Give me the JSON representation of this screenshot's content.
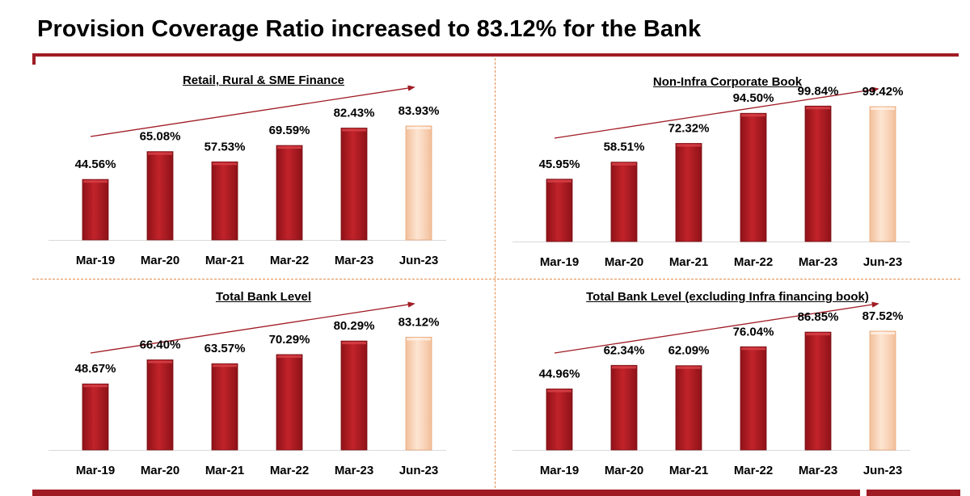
{
  "title": "Provision Coverage Ratio increased to 83.12% for the Bank",
  "colors": {
    "brand": "#a01c24",
    "bar": "#b31b22",
    "bar_highlight": "#f9d3b5",
    "divider": "#e38a4a"
  },
  "chart_data": [
    {
      "type": "bar",
      "title": "Retail, Rural & SME Finance",
      "categories": [
        "Mar-19",
        "Mar-20",
        "Mar-21",
        "Mar-22",
        "Mar-23",
        "Jun-23"
      ],
      "values": [
        44.56,
        65.08,
        57.53,
        69.59,
        82.43,
        83.93
      ],
      "value_labels": [
        "44.56%",
        "65.08%",
        "57.53%",
        "69.59%",
        "82.43%",
        "83.93%"
      ],
      "highlight_index": 5,
      "trend_arrow": true,
      "ylim": [
        0,
        100
      ]
    },
    {
      "type": "bar",
      "title": "Non-Infra Corporate Book",
      "categories": [
        "Mar-19",
        "Mar-20",
        "Mar-21",
        "Mar-22",
        "Mar-23",
        "Jun-23"
      ],
      "values": [
        45.95,
        58.51,
        72.32,
        94.5,
        99.84,
        99.42
      ],
      "value_labels": [
        "45.95%",
        "58.51%",
        "72.32%",
        "94.50%",
        "99.84%",
        "99.42%"
      ],
      "highlight_index": 5,
      "trend_arrow": true,
      "ylim": [
        0,
        100
      ]
    },
    {
      "type": "bar",
      "title": "Total Bank Level",
      "categories": [
        "Mar-19",
        "Mar-20",
        "Mar-21",
        "Mar-22",
        "Mar-23",
        "Jun-23"
      ],
      "values": [
        48.67,
        66.4,
        63.57,
        70.29,
        80.29,
        83.12
      ],
      "value_labels": [
        "48.67%",
        "66.40%",
        "63.57%",
        "70.29%",
        "80.29%",
        "83.12%"
      ],
      "highlight_index": 5,
      "trend_arrow": true,
      "ylim": [
        0,
        100
      ]
    },
    {
      "type": "bar",
      "title": "Total Bank Level (excluding Infra financing book)",
      "categories": [
        "Mar-19",
        "Mar-20",
        "Mar-21",
        "Mar-22",
        "Mar-23",
        "Jun-23"
      ],
      "values": [
        44.96,
        62.34,
        62.09,
        76.04,
        86.85,
        87.52
      ],
      "value_labels": [
        "44.96%",
        "62.34%",
        "62.09%",
        "76.04%",
        "86.85%",
        "87.52%"
      ],
      "highlight_index": 5,
      "trend_arrow": true,
      "ylim": [
        0,
        100
      ]
    }
  ]
}
